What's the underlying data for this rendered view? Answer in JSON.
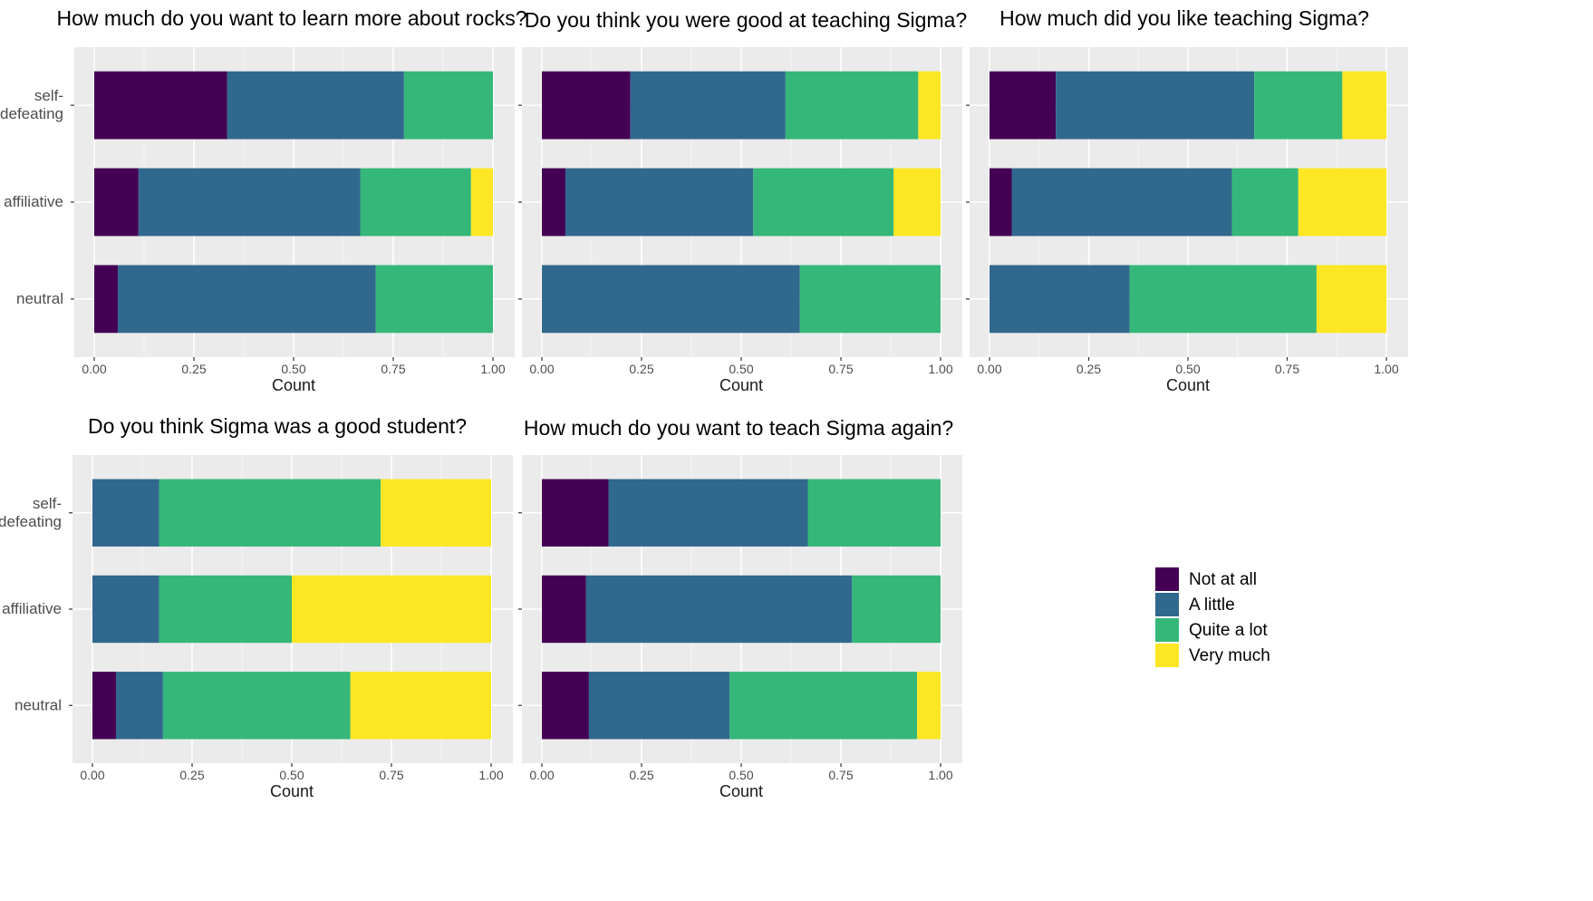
{
  "figure": {
    "legend": {
      "entries": [
        {
          "label": "Not at all",
          "color": "#440154"
        },
        {
          "label": "A little",
          "color": "#31688E"
        },
        {
          "label": "Quite a lot",
          "color": "#35B779"
        },
        {
          "label": "Very much",
          "color": "#FDE725"
        }
      ]
    }
  },
  "chart_data": [
    {
      "type": "bar",
      "orientation": "horizontal",
      "stacked": true,
      "title": "How much do you want to learn more about rocks?",
      "xlabel": "Count",
      "ylabel": "",
      "xlim": [
        0,
        1
      ],
      "xticks": [
        "0.00",
        "0.25",
        "0.50",
        "0.75",
        "1.00"
      ],
      "categories": [
        "self-\ndefeating",
        "affiliative",
        "neutral"
      ],
      "series": [
        {
          "name": "Not at all",
          "values": [
            0.333,
            0.111,
            0.059
          ]
        },
        {
          "name": "A little",
          "values": [
            0.444,
            0.556,
            0.647
          ]
        },
        {
          "name": "Quite a lot",
          "values": [
            0.223,
            0.278,
            0.294
          ]
        },
        {
          "name": "Very much",
          "values": [
            0.0,
            0.055,
            0.0
          ]
        }
      ]
    },
    {
      "type": "bar",
      "orientation": "horizontal",
      "stacked": true,
      "title": "Do you think you were good at teaching Sigma?",
      "xlabel": "Count",
      "ylabel": "",
      "xlim": [
        0,
        1
      ],
      "xticks": [
        "0.00",
        "0.25",
        "0.50",
        "0.75",
        "1.00"
      ],
      "categories": [
        "self-\ndefeating",
        "affiliative",
        "neutral"
      ],
      "series": [
        {
          "name": "Not at all",
          "values": [
            0.222,
            0.059,
            0.0
          ]
        },
        {
          "name": "A little",
          "values": [
            0.389,
            0.471,
            0.647
          ]
        },
        {
          "name": "Quite a lot",
          "values": [
            0.333,
            0.352,
            0.353
          ]
        },
        {
          "name": "Very much",
          "values": [
            0.056,
            0.118,
            0.0
          ]
        }
      ]
    },
    {
      "type": "bar",
      "orientation": "horizontal",
      "stacked": true,
      "title": "How much did you like teaching Sigma?",
      "xlabel": "Count",
      "ylabel": "",
      "xlim": [
        0,
        1
      ],
      "xticks": [
        "0.00",
        "0.25",
        "0.50",
        "0.75",
        "1.00"
      ],
      "categories": [
        "self-\ndefeating",
        "affiliative",
        "neutral"
      ],
      "series": [
        {
          "name": "Not at all",
          "values": [
            0.167,
            0.056,
            0.0
          ]
        },
        {
          "name": "A little",
          "values": [
            0.5,
            0.555,
            0.353
          ]
        },
        {
          "name": "Quite a lot",
          "values": [
            0.222,
            0.167,
            0.471
          ]
        },
        {
          "name": "Very much",
          "values": [
            0.111,
            0.222,
            0.176
          ]
        }
      ]
    },
    {
      "type": "bar",
      "orientation": "horizontal",
      "stacked": true,
      "title": "Do you think Sigma was a good student?",
      "xlabel": "Count",
      "ylabel": "",
      "xlim": [
        0,
        1
      ],
      "xticks": [
        "0.00",
        "0.25",
        "0.50",
        "0.75",
        "1.00"
      ],
      "categories": [
        "self-\ndefeating",
        "affiliative",
        "neutral"
      ],
      "series": [
        {
          "name": "Not at all",
          "values": [
            0.0,
            0.0,
            0.059
          ]
        },
        {
          "name": "A little",
          "values": [
            0.167,
            0.167,
            0.118
          ]
        },
        {
          "name": "Quite a lot",
          "values": [
            0.556,
            0.333,
            0.47
          ]
        },
        {
          "name": "Very much",
          "values": [
            0.277,
            0.5,
            0.353
          ]
        }
      ]
    },
    {
      "type": "bar",
      "orientation": "horizontal",
      "stacked": true,
      "title": "How much do you want to teach Sigma again?",
      "xlabel": "Count",
      "ylabel": "",
      "xlim": [
        0,
        1
      ],
      "xticks": [
        "0.00",
        "0.25",
        "0.50",
        "0.75",
        "1.00"
      ],
      "categories": [
        "self-\ndefeating",
        "affiliative",
        "neutral"
      ],
      "series": [
        {
          "name": "Not at all",
          "values": [
            0.167,
            0.111,
            0.118
          ]
        },
        {
          "name": "A little",
          "values": [
            0.5,
            0.667,
            0.353
          ]
        },
        {
          "name": "Quite a lot",
          "values": [
            0.333,
            0.222,
            0.47
          ]
        },
        {
          "name": "Very much",
          "values": [
            0.0,
            0.0,
            0.059
          ]
        }
      ]
    }
  ]
}
